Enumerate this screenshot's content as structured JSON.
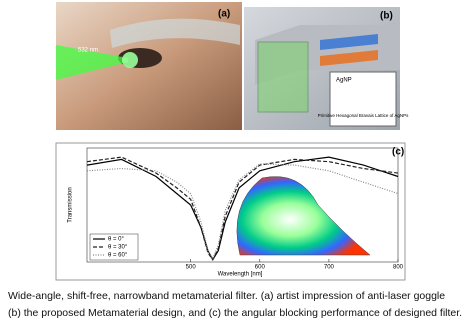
{
  "panels": {
    "a": "(a)",
    "b": "(b)",
    "c": "(c)"
  },
  "annotations": {
    "laser": "532 nm",
    "agnp": "AgNP",
    "lattice": "Primitive Hexagonal Bravais Lattice of AgNPs"
  },
  "caption": [
    "Wide-angle, shift-free, narrowband metamaterial filter. (a) artist impression of anti-laser goggle",
    "(b) the proposed Metamaterial design, and (c) the angular blocking performance of designed filter."
  ],
  "chart_data": {
    "type": "line",
    "ylabel": "Transmission",
    "xlabel": "Wavelength [nm]",
    "x": [
      350,
      400,
      450,
      480,
      500,
      515,
      525,
      532,
      540,
      550,
      570,
      600,
      650,
      700,
      750,
      800
    ],
    "series": [
      {
        "name": "θ = 0°",
        "color": "#000000",
        "dash": "none",
        "values": [
          0.85,
          0.9,
          0.75,
          0.6,
          0.5,
          0.3,
          0.1,
          0.02,
          0.1,
          0.35,
          0.65,
          0.8,
          0.88,
          0.92,
          0.85,
          0.75
        ]
      },
      {
        "name": "θ = 30°",
        "color": "#222222",
        "dash": "4 2",
        "values": [
          0.88,
          0.92,
          0.78,
          0.65,
          0.55,
          0.3,
          0.08,
          0.02,
          0.12,
          0.4,
          0.7,
          0.85,
          0.9,
          0.88,
          0.82,
          0.78
        ]
      },
      {
        "name": "θ = 60°",
        "color": "#888888",
        "dash": "1 1.5",
        "values": [
          0.8,
          0.82,
          0.8,
          0.7,
          0.6,
          0.35,
          0.1,
          0.03,
          0.15,
          0.45,
          0.72,
          0.86,
          0.85,
          0.8,
          0.7,
          0.6
        ]
      }
    ],
    "xlim": [
      350,
      800
    ],
    "xticks": [
      500,
      600,
      700,
      800
    ],
    "ylim": [
      0,
      1
    ],
    "legend": "lower-left"
  }
}
